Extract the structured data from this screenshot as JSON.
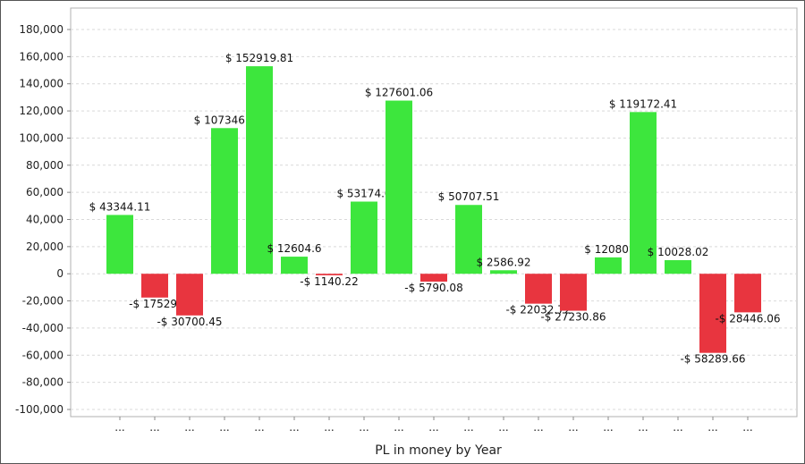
{
  "chart_data": {
    "type": "bar",
    "xlabel": "PL in money by Year",
    "ylabel": "",
    "ylim": [
      -100000,
      180000
    ],
    "yticks": [
      180000,
      160000,
      140000,
      120000,
      100000,
      80000,
      60000,
      40000,
      20000,
      0,
      -20000,
      -40000,
      -60000,
      -80000,
      -100000
    ],
    "ytick_labels": [
      "180,000",
      "160,000",
      "140,000",
      "120,000",
      "100,000",
      "80,000",
      "60,000",
      "40,000",
      "20,000",
      "0",
      "-20,000",
      "-40,000",
      "-60,000",
      "-80,000",
      "-100,000"
    ],
    "grid": true,
    "categories": [
      "...",
      "...",
      "...",
      "...",
      "...",
      "...",
      "...",
      "...",
      "...",
      "...",
      "...",
      "...",
      "...",
      "...",
      "...",
      "...",
      "...",
      "...",
      "..."
    ],
    "values": [
      43344.11,
      -17529,
      -30700.45,
      107346,
      152919.81,
      12604.6,
      -1140.22,
      53174,
      127601.06,
      -5790.08,
      50707.51,
      2586.92,
      -22032.72,
      -27230.86,
      12080,
      119172.41,
      10028.02,
      -58289.66,
      -28446.06
    ],
    "data_labels": [
      "$ 43344.11",
      "-$ 17529.",
      "-$ 30700.45",
      "$ 107346.0",
      "$ 152919.81",
      "$ 12604.6",
      "-$ 1140.22",
      "$ 53174.0",
      "$ 127601.06",
      "-$ 5790.08",
      "$ 50707.51",
      "$ 2586.92",
      "-$ 22032.72",
      "-$ 27230.86",
      "$ 12080.",
      "$ 119172.41",
      "$ 10028.02",
      "-$ 58289.66",
      "-$ 28446.06"
    ],
    "positive_color": "#3de63d",
    "negative_color": "#e8353f"
  }
}
